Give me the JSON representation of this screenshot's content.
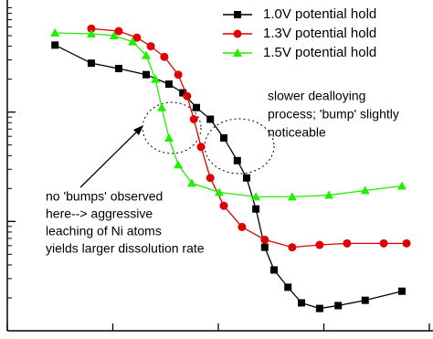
{
  "chart_data": {
    "type": "line",
    "log_y": true,
    "tick_labels": false,
    "legend": "upper right",
    "xlim": [
      0,
      100
    ],
    "xticks": [
      0,
      25,
      50,
      75,
      100
    ],
    "ylim": [
      0.1,
      100
    ],
    "yticks": [
      1,
      10
    ],
    "yminorticks": [
      0.2,
      0.3,
      0.4,
      0.5,
      0.6,
      0.7,
      0.8,
      0.9,
      2,
      3,
      4,
      5,
      6,
      7,
      8,
      9,
      20,
      30,
      40,
      50,
      60,
      70,
      80,
      90
    ],
    "series": [
      {
        "name": "1.0V potential hold",
        "color": "#000000",
        "marker": "square",
        "x": [
          11.3,
          19.9,
          26.4,
          32.9,
          38.3,
          41.6,
          44.8,
          48.1,
          51.3,
          54.5,
          56.7,
          58.9,
          61.0,
          63.2,
          66.5,
          69.7,
          74.0,
          78.4,
          84.8,
          93.5
        ],
        "values": [
          41,
          28,
          25,
          22,
          18,
          15,
          11,
          8.6,
          5.8,
          3.6,
          2.5,
          1.3,
          0.58,
          0.36,
          0.25,
          0.18,
          0.16,
          0.17,
          0.19,
          0.23
        ]
      },
      {
        "name": "1.3V potential hold",
        "color": "#e00000",
        "marker": "circle",
        "x": [
          19.9,
          26.4,
          30.7,
          34.0,
          37.2,
          40.5,
          42.6,
          44.2,
          45.9,
          48.1,
          51.3,
          55.6,
          61.0,
          67.5,
          74.0,
          80.5,
          89.2,
          94.6
        ],
        "values": [
          58,
          55,
          48,
          40,
          32,
          22,
          14,
          8.6,
          4.8,
          2.5,
          1.39,
          0.89,
          0.68,
          0.58,
          0.61,
          0.63,
          0.63,
          0.63
        ]
      },
      {
        "name": "1.5V potential hold",
        "color": "#22ee00",
        "marker": "triangle",
        "x": [
          11.3,
          19.9,
          25.3,
          29.7,
          32.9,
          35.1,
          36.6,
          38.3,
          40.5,
          43.7,
          50.2,
          58.9,
          67.5,
          76.2,
          84.8,
          93.5
        ],
        "values": [
          53,
          52,
          50,
          44,
          33,
          20,
          11,
          5.8,
          3.3,
          2.24,
          1.85,
          1.68,
          1.68,
          1.74,
          1.92,
          2.11
        ]
      }
    ],
    "annotations": [
      {
        "lines": [
          "slower dealloying",
          "process; 'bump' slightly",
          "noticeable"
        ]
      },
      {
        "lines": [
          "no 'bumps' observed",
          "here--> aggressive",
          "leaching of Ni atoms",
          "yields larger dissolution rate"
        ]
      }
    ]
  }
}
